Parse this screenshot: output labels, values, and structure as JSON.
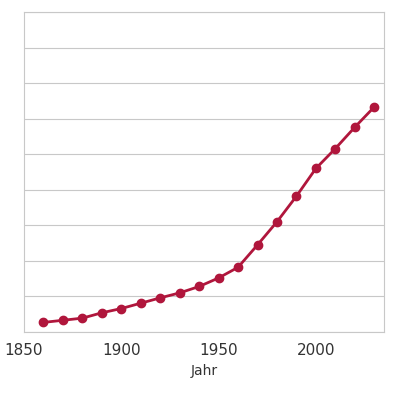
{
  "chart_data": {
    "type": "line",
    "x_label": "Jahr",
    "x": [
      1860,
      1870,
      1880,
      1890,
      1900,
      1910,
      1920,
      1930,
      1940,
      1950,
      1960,
      1970,
      1980,
      1990,
      2000,
      2010,
      2020,
      2030
    ],
    "values": [
      0.27,
      0.33,
      0.39,
      0.54,
      0.66,
      0.81,
      0.96,
      1.1,
      1.28,
      1.52,
      1.82,
      2.45,
      3.1,
      3.82,
      4.6,
      5.16,
      5.76,
      6.33
    ],
    "color": "#b0163c",
    "marker": "circle",
    "line_style": "solid",
    "xlim": [
      1850,
      2035
    ],
    "xticks": [
      1850,
      1900,
      1950,
      2000
    ],
    "ylim": [
      0,
      9
    ],
    "yticks": [
      0,
      1,
      2,
      3,
      4,
      5,
      6,
      7,
      8,
      9
    ],
    "grid": true,
    "tick_labels": "x"
  }
}
